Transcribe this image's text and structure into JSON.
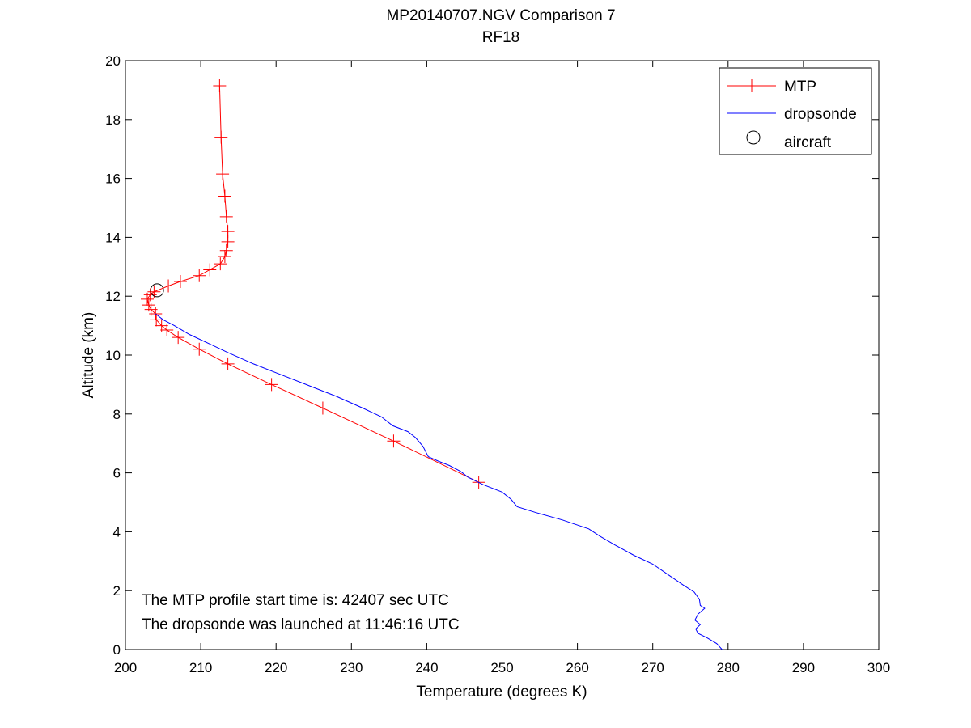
{
  "chart_data": {
    "type": "line",
    "title": "MP20140707.NGV Comparison 7",
    "subtitle": "RF18",
    "xlabel": "Temperature (degrees K)",
    "ylabel": "Altitude (km)",
    "xlim": [
      200,
      300
    ],
    "ylim": [
      0,
      20
    ],
    "xticks": [
      200,
      210,
      220,
      230,
      240,
      250,
      260,
      270,
      280,
      290,
      300
    ],
    "yticks": [
      0,
      2,
      4,
      6,
      8,
      10,
      12,
      14,
      16,
      18,
      20
    ],
    "grid": false,
    "legend_position": "top-right",
    "annotations": [
      "The MTP profile start time is: 42407 sec UTC",
      "The dropsonde was launched at 11:46:16 UTC"
    ],
    "series": [
      {
        "name": "MTP",
        "color": "#ff0000",
        "marker": "plus",
        "points": [
          [
            212.5,
            19.15
          ],
          [
            212.7,
            17.4
          ],
          [
            212.9,
            16.15
          ],
          [
            213.2,
            15.4
          ],
          [
            213.4,
            14.7
          ],
          [
            213.6,
            14.2
          ],
          [
            213.6,
            13.85
          ],
          [
            213.4,
            13.55
          ],
          [
            213.2,
            13.35
          ],
          [
            212.6,
            13.1
          ],
          [
            211.2,
            12.9
          ],
          [
            209.8,
            12.7
          ],
          [
            207.3,
            12.5
          ],
          [
            205.7,
            12.35
          ],
          [
            203.8,
            12.15
          ],
          [
            203.3,
            12.05
          ],
          [
            202.9,
            11.9
          ],
          [
            203.1,
            11.7
          ],
          [
            203.4,
            11.55
          ],
          [
            204.0,
            11.4
          ],
          [
            204.1,
            11.2
          ],
          [
            204.8,
            11.0
          ],
          [
            205.5,
            10.85
          ],
          [
            207.0,
            10.6
          ],
          [
            209.8,
            10.2
          ],
          [
            213.6,
            9.7
          ],
          [
            219.4,
            9.0
          ],
          [
            226.2,
            8.2
          ],
          [
            235.6,
            7.08
          ],
          [
            246.9,
            5.68
          ]
        ]
      },
      {
        "name": "dropsonde",
        "color": "#0000ff",
        "marker": "none",
        "points": [
          [
            204.0,
            11.4
          ],
          [
            205.0,
            11.2
          ],
          [
            206.5,
            11.0
          ],
          [
            208.5,
            10.7
          ],
          [
            211.0,
            10.4
          ],
          [
            213.5,
            10.1
          ],
          [
            217.0,
            9.7
          ],
          [
            220.5,
            9.35
          ],
          [
            224.0,
            9.0
          ],
          [
            228.0,
            8.6
          ],
          [
            231.5,
            8.2
          ],
          [
            234.0,
            7.9
          ],
          [
            235.5,
            7.6
          ],
          [
            237.5,
            7.4
          ],
          [
            238.5,
            7.2
          ],
          [
            239.5,
            6.9
          ],
          [
            240.2,
            6.55
          ],
          [
            241.5,
            6.4
          ],
          [
            243.0,
            6.25
          ],
          [
            244.5,
            6.05
          ],
          [
            245.5,
            5.85
          ],
          [
            247.5,
            5.6
          ],
          [
            250.0,
            5.35
          ],
          [
            251.2,
            5.1
          ],
          [
            252.0,
            4.85
          ],
          [
            254.5,
            4.65
          ],
          [
            258.0,
            4.4
          ],
          [
            261.5,
            4.1
          ],
          [
            263.0,
            3.85
          ],
          [
            265.0,
            3.55
          ],
          [
            267.5,
            3.2
          ],
          [
            270.0,
            2.9
          ],
          [
            272.0,
            2.55
          ],
          [
            274.0,
            2.2
          ],
          [
            275.5,
            1.95
          ],
          [
            276.2,
            1.7
          ],
          [
            276.3,
            1.5
          ],
          [
            276.9,
            1.4
          ],
          [
            276.0,
            1.2
          ],
          [
            275.6,
            1.0
          ],
          [
            276.3,
            0.85
          ],
          [
            275.7,
            0.7
          ],
          [
            276.0,
            0.55
          ],
          [
            277.2,
            0.4
          ],
          [
            278.5,
            0.2
          ],
          [
            279.2,
            0.0
          ]
        ]
      }
    ],
    "aircraft": {
      "name": "aircraft",
      "color": "#000000",
      "marker": "circle",
      "x": 204.2,
      "y": 12.2
    }
  }
}
